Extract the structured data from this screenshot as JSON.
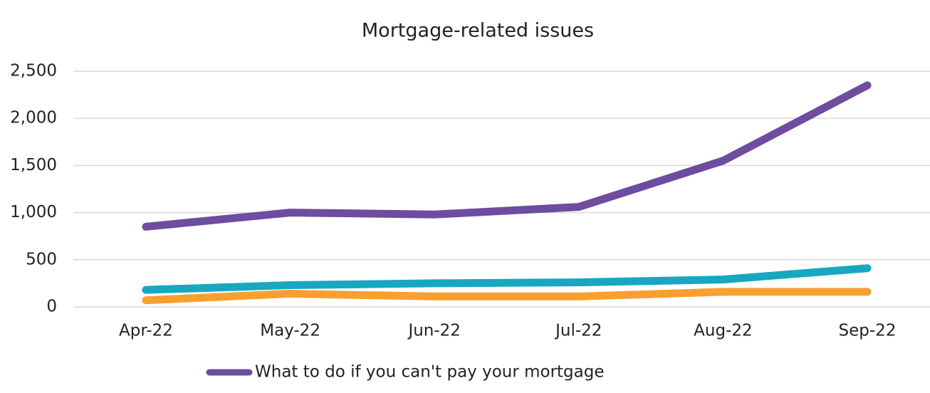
{
  "chart_data": {
    "type": "line",
    "title": "Mortgage-related issues",
    "categories": [
      "Apr-22",
      "May-22",
      "Jun-22",
      "Jul-22",
      "Aug-22",
      "Sep-22"
    ],
    "series": [
      {
        "name": "What to do if you can't pay your mortgage",
        "color": "#6e4c9f",
        "values": [
          850,
          1000,
          980,
          1060,
          1550,
          2350
        ]
      },
      {
        "color": "#17a8c0",
        "values": [
          180,
          230,
          250,
          260,
          290,
          410
        ]
      },
      {
        "color": "#f7a030",
        "values": [
          70,
          140,
          110,
          110,
          160,
          160
        ]
      }
    ],
    "ylim": [
      0,
      2500
    ],
    "yticks": [
      0,
      500,
      {
        "value": 1000,
        "label": "1,000"
      },
      {
        "value": 1500,
        "label": "1,500"
      },
      {
        "value": 2000,
        "label": "2,000"
      },
      {
        "value": 2500,
        "label": "2,500"
      }
    ],
    "grid": true
  }
}
